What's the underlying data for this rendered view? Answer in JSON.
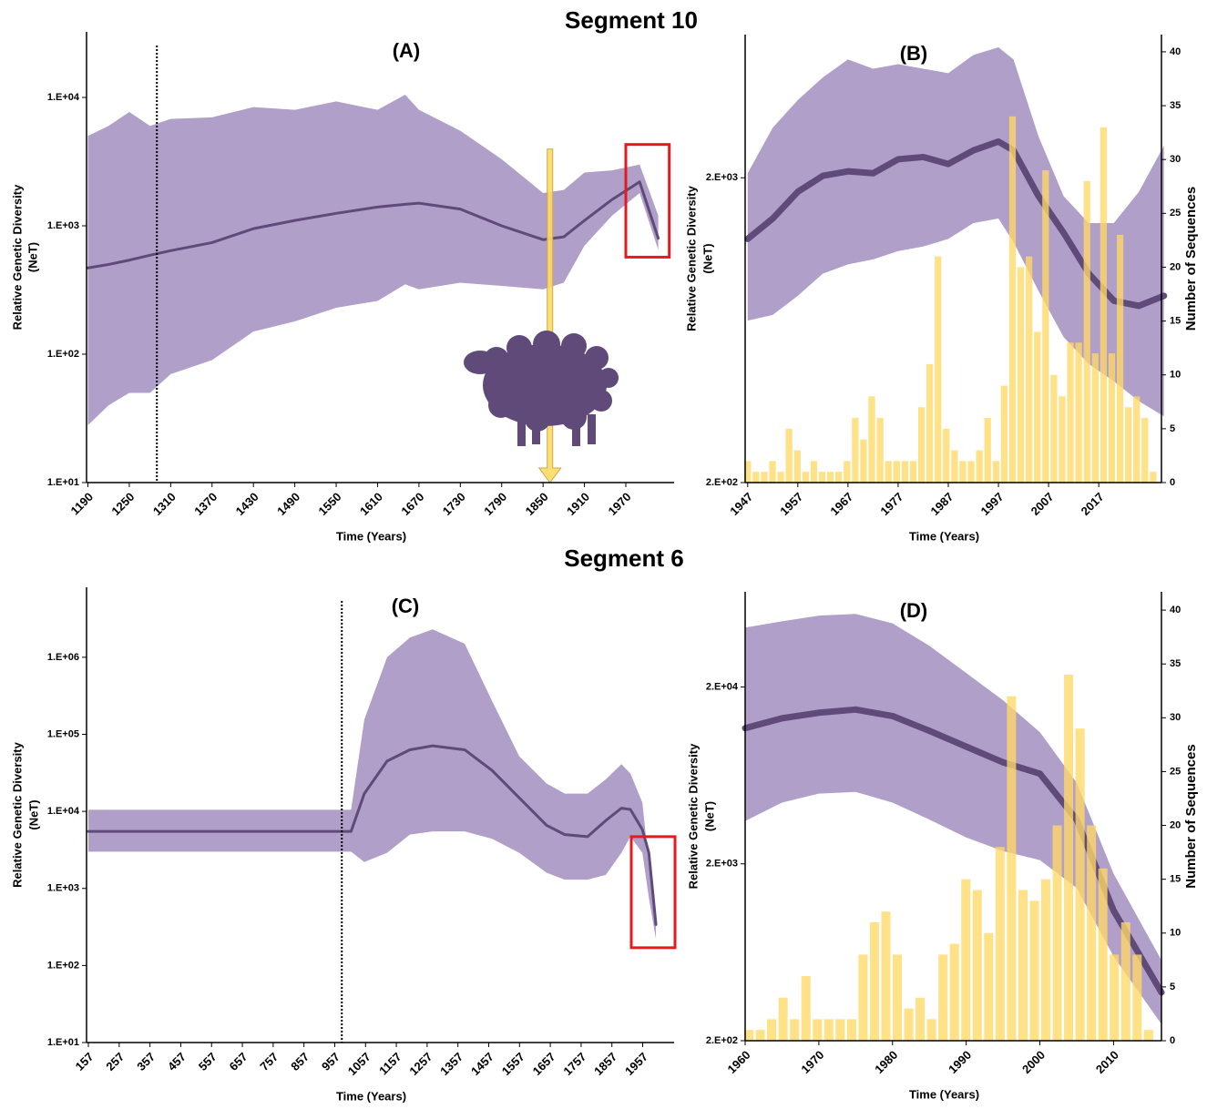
{
  "headings": [
    "Segment 10",
    "Segment 6"
  ],
  "chart_data": [
    {
      "type": "line",
      "title": "(A)",
      "xlabel": "Time (Years)",
      "ylabel": [
        "Relative Genetic Diversity",
        "(NeT)"
      ],
      "log_y": true,
      "x": [
        1190,
        1220,
        1250,
        1280,
        1310,
        1370,
        1430,
        1490,
        1550,
        1610,
        1650,
        1670,
        1730,
        1790,
        1850,
        1880,
        1910,
        1950,
        1990,
        2017
      ],
      "series": [
        {
          "color": "#5f4a7a",
          "band_color": "#b09fc8",
          "values": [
            470,
            500,
            540,
            590,
            640,
            740,
            950,
            1100,
            1250,
            1400,
            1470,
            1500,
            1350,
            1000,
            780,
            820,
            1100,
            1600,
            2200,
            800
          ],
          "upper": [
            5000,
            6000,
            7700,
            6000,
            6800,
            7000,
            8400,
            8000,
            9300,
            8000,
            10500,
            8000,
            5500,
            3300,
            1800,
            1900,
            2600,
            2700,
            3000,
            1200
          ],
          "lower": [
            28,
            40,
            50,
            50,
            70,
            90,
            150,
            180,
            230,
            260,
            350,
            320,
            360,
            340,
            320,
            360,
            700,
            1200,
            1800,
            650
          ]
        }
      ],
      "xlim": [
        1188,
        2040
      ],
      "xticks": [
        1190,
        1250,
        1310,
        1370,
        1430,
        1490,
        1550,
        1610,
        1670,
        1730,
        1790,
        1850,
        1910,
        1970
      ],
      "ylim": [
        10,
        32400
      ],
      "yticks": [
        {
          "value": 10,
          "label": "1.E+01"
        },
        {
          "value": 100,
          "label": "1.E+02"
        },
        {
          "value": 1000,
          "label": "1.E+03"
        },
        {
          "value": 10000,
          "label": "1.E+04"
        }
      ],
      "vlines": [
        1290
      ],
      "highlight": {
        "x": [
          1970,
          2033
        ],
        "y": [
          570,
          4300
        ],
        "color": "#e8191c"
      },
      "arrow": {
        "x": 1860,
        "y": [
          3960,
          10
        ],
        "color": "#ffd966"
      }
    },
    {
      "type": "line",
      "title": "(B)",
      "xlabel": "Time (Years)",
      "ylabel": [
        "Relative Genetic Diversity",
        "(NeT)"
      ],
      "y2label": "Number of Sequences",
      "log_y": true,
      "x": [
        1947,
        1952,
        1957,
        1962,
        1967,
        1972,
        1977,
        1982,
        1987,
        1992,
        1997,
        2000,
        2005,
        2010,
        2015,
        2020,
        2025,
        2030
      ],
      "series": [
        {
          "color": "#5f4a7a",
          "band_color": "#b09fc8",
          "values": [
            1260,
            1470,
            1800,
            2030,
            2100,
            2070,
            2300,
            2340,
            2220,
            2460,
            2630,
            2460,
            1740,
            1320,
            970,
            790,
            760,
            820
          ],
          "upper": [
            2070,
            2920,
            3600,
            4270,
            4890,
            4560,
            4720,
            4560,
            4410,
            5060,
            5360,
            4890,
            2730,
            1740,
            1420,
            1420,
            1800,
            2550
          ],
          "lower": [
            680,
            710,
            820,
            970,
            1040,
            1080,
            1150,
            1190,
            1260,
            1420,
            1470,
            1230,
            850,
            600,
            490,
            430,
            370,
            330
          ]
        },
        {
          "type": "bar",
          "axis": "y2",
          "color": "#ffd966",
          "x": [
            1947,
            1948.65,
            1950.3,
            1951.95,
            1953.6,
            1955.25,
            1956.9,
            1958.55,
            1960.2,
            1961.85,
            1963.5,
            1965.15,
            1966.8,
            1968.45,
            1970.1,
            1971.75,
            1973.4,
            1975.05,
            1976.7,
            1978.35,
            1980,
            1981.65,
            1983.3,
            1984.95,
            1986.6,
            1988.25,
            1989.9,
            1991.55,
            1993.2,
            1994.85,
            1996.5,
            1998.15,
            1999.8,
            2001.45,
            2003.1,
            2004.75,
            2006.4,
            2008.05,
            2009.7,
            2011.35,
            2013,
            2014.65,
            2016.3,
            2017.95,
            2019.6,
            2021.25,
            2022.9,
            2024.55,
            2026.2,
            2027.85
          ],
          "values": [
            2,
            1,
            1,
            2,
            1,
            5,
            3,
            1,
            2,
            1,
            1,
            1,
            2,
            6,
            4,
            8,
            6,
            2,
            2,
            2,
            2,
            7,
            11,
            21,
            5,
            3,
            2,
            2,
            3,
            6,
            2,
            9,
            34,
            20,
            21,
            14,
            29,
            10,
            8,
            13,
            13,
            28,
            12,
            33,
            12,
            23,
            7,
            8,
            6,
            1
          ]
        }
      ],
      "xlim": [
        1946.5,
        2029.5
      ],
      "xticks": [
        1947,
        1957,
        1967,
        1977,
        1987,
        1997,
        2007,
        2017
      ],
      "ylim": [
        200,
        5900
      ],
      "yticks": [
        {
          "value": 200,
          "label": "2.E+02"
        },
        {
          "value": 2000,
          "label": "2.E+03"
        }
      ],
      "y2lim": [
        0,
        41.6
      ],
      "y2ticks": [
        0,
        5,
        10,
        15,
        20,
        25,
        30,
        35,
        40
      ]
    },
    {
      "type": "line",
      "title": "(C)",
      "xlabel": "Time (Years)",
      "ylabel": [
        "Relative Genetic Diversity",
        "(NeT)"
      ],
      "log_y": true,
      "x": [
        157,
        1010,
        1053,
        1127,
        1201,
        1275,
        1379,
        1468,
        1556,
        1645,
        1704,
        1778,
        1837,
        1888,
        1917,
        1956,
        1977,
        2000
      ],
      "series": [
        {
          "color": "#5f4a7a",
          "band_color": "#b09fc8",
          "values": [
            5500,
            5500,
            17000,
            45000,
            63000,
            71000,
            63000,
            34000,
            15000,
            6600,
            5000,
            4700,
            7600,
            11000,
            10600,
            5800,
            2900,
            340
          ],
          "upper": [
            10500,
            10500,
            155000,
            1000000,
            1800000,
            2300000,
            1500000,
            270000,
            52000,
            23000,
            17000,
            17000,
            26000,
            41000,
            31000,
            13000,
            2000,
            510
          ],
          "lower": [
            3000,
            3000,
            2200,
            2900,
            5000,
            5500,
            5500,
            4400,
            2900,
            1600,
            1300,
            1300,
            1500,
            2900,
            4700,
            2900,
            760,
            220
          ]
        }
      ],
      "xlim": [
        151,
        2059
      ],
      "xticks": [
        157,
        257,
        357,
        457,
        557,
        657,
        757,
        857,
        957,
        1057,
        1157,
        1257,
        1357,
        1457,
        1557,
        1657,
        1757,
        1857,
        1957
      ],
      "ylim": [
        10,
        8100000
      ],
      "yticks": [
        {
          "value": 10,
          "label": "1.E+01"
        },
        {
          "value": 100,
          "label": "1.E+02"
        },
        {
          "value": 1000,
          "label": "1.E+03"
        },
        {
          "value": 10000,
          "label": "1.E+04"
        },
        {
          "value": 100000,
          "label": "1.E+05"
        },
        {
          "value": 1000000,
          "label": "1.E+06"
        }
      ],
      "vlines": [
        980
      ],
      "highlight": {
        "x": [
          1920,
          2062
        ],
        "y": [
          170,
          4700
        ],
        "color": "#e8191c"
      }
    },
    {
      "type": "line",
      "title": "(D)",
      "xlabel": "Time (Years)",
      "ylabel": [
        "Relative Genetic Diversity",
        "(NeT)"
      ],
      "y2label": "Number of Sequences",
      "log_y": true,
      "x": [
        1960,
        1965,
        1970,
        1975,
        1980,
        1985,
        1990,
        1995,
        2000,
        2005,
        2010,
        2016.5
      ],
      "series": [
        {
          "color": "#5f4a7a",
          "band_color": "#b09fc8",
          "values": [
            11700,
            13300,
            14300,
            14900,
            13700,
            11300,
            9200,
            7500,
            6470,
            3550,
            1090,
            375
          ],
          "upper": [
            43300,
            47000,
            50600,
            51800,
            45800,
            34200,
            24000,
            16800,
            11100,
            5750,
            1760,
            570
          ],
          "lower": [
            3490,
            4440,
            4990,
            5100,
            4440,
            3560,
            2820,
            2360,
            2100,
            1460,
            600,
            248
          ]
        },
        {
          "type": "bar",
          "axis": "y2",
          "color": "#ffd966",
          "x": [
            1960.5,
            1962.05,
            1963.6,
            1965.15,
            1966.7,
            1968.25,
            1969.8,
            1971.35,
            1972.9,
            1974.45,
            1976,
            1977.55,
            1979.1,
            1980.65,
            1982.2,
            1983.75,
            1985.3,
            1986.85,
            1988.4,
            1989.95,
            1991.5,
            1993.05,
            1994.6,
            1996.15,
            1997.7,
            1999.25,
            2000.8,
            2002.35,
            2003.9,
            2005.45,
            2007,
            2008.55,
            2010.1,
            2011.65,
            2013.2,
            2014.75
          ],
          "values": [
            1,
            1,
            2,
            4,
            2,
            6,
            2,
            2,
            2,
            2,
            8,
            11,
            12,
            8,
            3,
            4,
            2,
            8,
            9,
            15,
            14,
            10,
            18,
            32,
            14,
            13,
            15,
            20,
            34,
            29,
            20,
            16,
            8,
            11,
            8,
            1
          ]
        }
      ],
      "xlim": [
        1960,
        2016.5
      ],
      "xticks": [
        1960,
        1970,
        1980,
        1990,
        2000,
        2010
      ],
      "ylim": [
        200,
        69000
      ],
      "yticks": [
        {
          "value": 200,
          "label": "2.E+02"
        },
        {
          "value": 2000,
          "label": "2.E+03"
        },
        {
          "value": 20000,
          "label": "2.E+04"
        }
      ],
      "y2lim": [
        0,
        41.7
      ],
      "y2ticks": [
        0,
        5,
        10,
        15,
        20,
        25,
        30,
        35,
        40
      ]
    }
  ]
}
